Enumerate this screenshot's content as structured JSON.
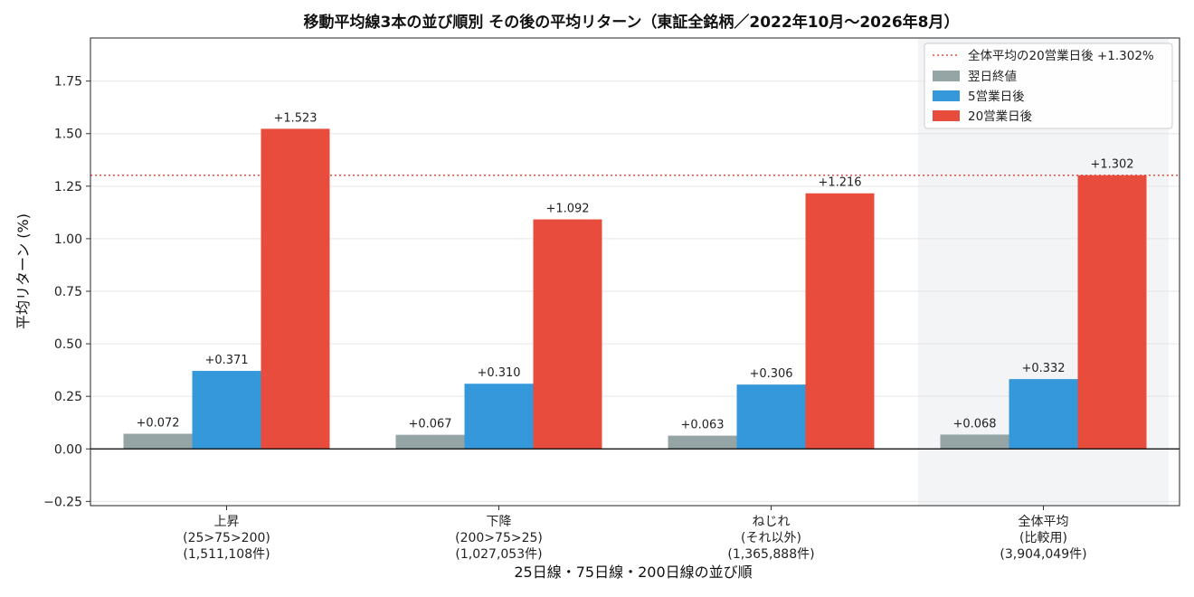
{
  "chart_data": {
    "type": "bar",
    "title": "移動平均線3本の並び順別 その後の平均リターン（東証全銘柄／2022年10月〜2026年8月）",
    "xlabel": "25日線・75日線・200日線の並び順",
    "ylabel": "平均リターン (%)",
    "ylim": [
      -0.27,
      1.955
    ],
    "yticks": [
      -0.25,
      0.0,
      0.25,
      0.5,
      0.75,
      1.0,
      1.25,
      1.5,
      1.75
    ],
    "ytick_labels": [
      "−0.25",
      "0.00",
      "0.25",
      "0.50",
      "0.75",
      "1.00",
      "1.25",
      "1.50",
      "1.75"
    ],
    "grid": true,
    "legend_position": "top-right",
    "categories": [
      [
        "上昇",
        "(25>75>200)",
        "(1,511,108件)"
      ],
      [
        "下降",
        "(200>75>25)",
        "(1,027,053件)"
      ],
      [
        "ねじれ",
        "(それ以外)",
        "(1,365,888件)"
      ],
      [
        "全体平均",
        "(比較用)",
        "(3,904,049件)"
      ]
    ],
    "highlight_category": 3,
    "series": [
      {
        "name": "翌日終値",
        "color": "#95a5a6",
        "values": [
          0.072,
          0.067,
          0.063,
          0.068
        ],
        "labels": [
          "+0.072",
          "+0.067",
          "+0.063",
          "+0.068"
        ]
      },
      {
        "name": "5営業日後",
        "color": "#3498db",
        "values": [
          0.371,
          0.31,
          0.306,
          0.332
        ],
        "labels": [
          "+0.371",
          "+0.310",
          "+0.306",
          "+0.332"
        ]
      },
      {
        "name": "20営業日後",
        "color": "#e74c3c",
        "values": [
          1.523,
          1.092,
          1.216,
          1.302
        ],
        "labels": [
          "+1.523",
          "+1.092",
          "+1.216",
          "+1.302"
        ]
      }
    ],
    "reference_line": {
      "name": "全体平均の20営業日後 +1.302%",
      "value": 1.302,
      "color": "#e74c3c",
      "style": "dotted"
    }
  }
}
